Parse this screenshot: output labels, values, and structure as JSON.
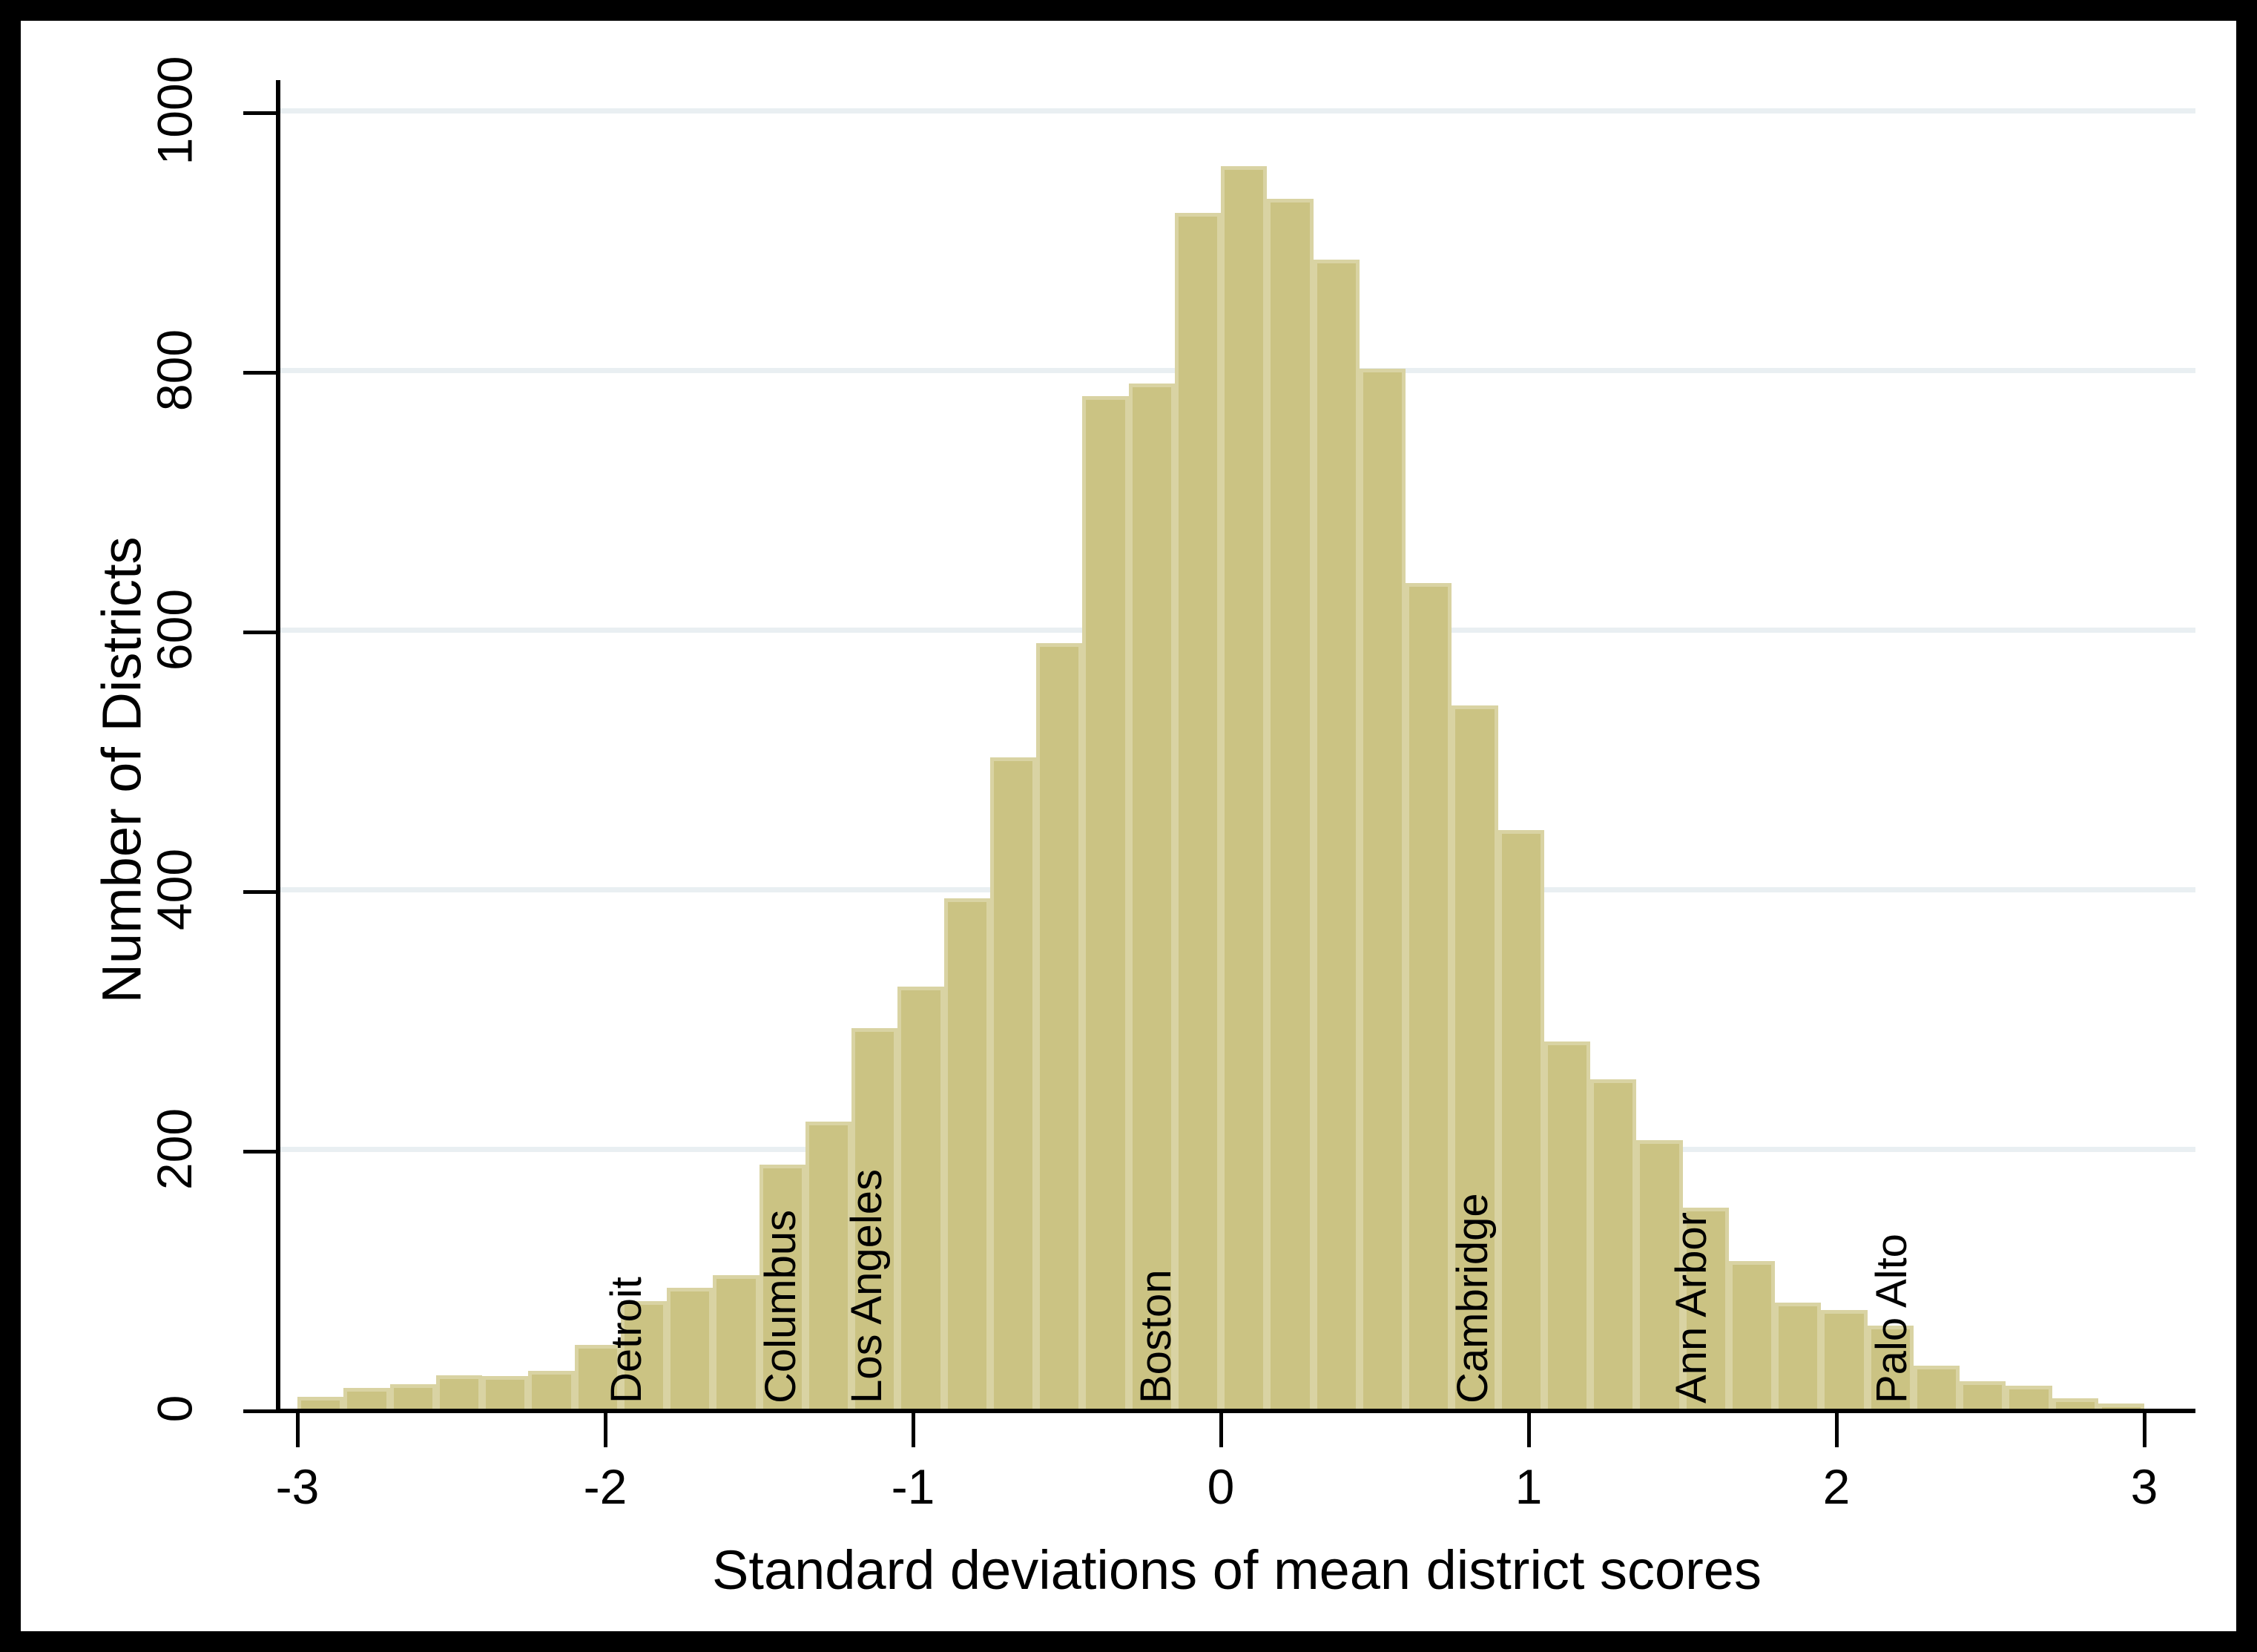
{
  "figure": {
    "background": "#ffffff",
    "frame_color": "#000000"
  },
  "chart_data": {
    "type": "bar",
    "subtype": "histogram",
    "title": "",
    "xlabel": "Standard deviations of mean district scores",
    "ylabel": "Number of Districts",
    "xlim": [
      -3,
      3
    ],
    "ylim": [
      0,
      1000
    ],
    "grid": "horizontal-only",
    "legend": "none",
    "x_tick_labels": [
      "-3",
      "-2",
      "-1",
      "0",
      "1",
      "2",
      "3"
    ],
    "x_tick_values": [
      -3,
      -2,
      -1,
      0,
      1,
      2,
      3
    ],
    "y_tick_labels": [
      "0",
      "200",
      "400",
      "600",
      "800",
      "1000"
    ],
    "y_tick_values": [
      0,
      200,
      400,
      600,
      800,
      1000
    ],
    "bin_start": -3,
    "bin_width": 0.15,
    "bin_centers": [
      -2.925,
      -2.775,
      -2.625,
      -2.475,
      -2.325,
      -2.175,
      -2.025,
      -1.875,
      -1.725,
      -1.575,
      -1.425,
      -1.275,
      -1.125,
      -0.975,
      -0.825,
      -0.675,
      -0.525,
      -0.375,
      -0.225,
      -0.075,
      0.075,
      0.225,
      0.375,
      0.525,
      0.675,
      0.825,
      0.975,
      1.125,
      1.275,
      1.425,
      1.575,
      1.725,
      1.875,
      2.025,
      2.175,
      2.325,
      2.475,
      2.625,
      2.775,
      2.925
    ],
    "values": [
      9,
      16,
      19,
      26,
      25,
      29,
      49,
      83,
      93,
      103,
      188,
      221,
      293,
      325,
      393,
      502,
      590,
      780,
      790,
      921,
      957,
      932,
      885,
      801,
      636,
      542,
      446,
      283,
      254,
      207,
      155,
      114,
      82,
      76,
      64,
      33,
      21,
      18,
      8,
      4
    ],
    "annotations": [
      {
        "label": "Detroit",
        "x": -1.93
      },
      {
        "label": "Columbus",
        "x": -1.43
      },
      {
        "label": "Los Angeles",
        "x": -1.15
      },
      {
        "label": "Boston",
        "x": -0.21
      },
      {
        "label": "Cambridge",
        "x": 0.82
      },
      {
        "label": "Ann Arbor",
        "x": 1.53
      },
      {
        "label": "Palo Alto",
        "x": 2.18
      }
    ],
    "colors": {
      "bar_fill": "#cbc383",
      "bar_border": "#d9d3a3",
      "gridline": "#e9eff2",
      "axis": "#000000",
      "text": "#000000"
    }
  }
}
